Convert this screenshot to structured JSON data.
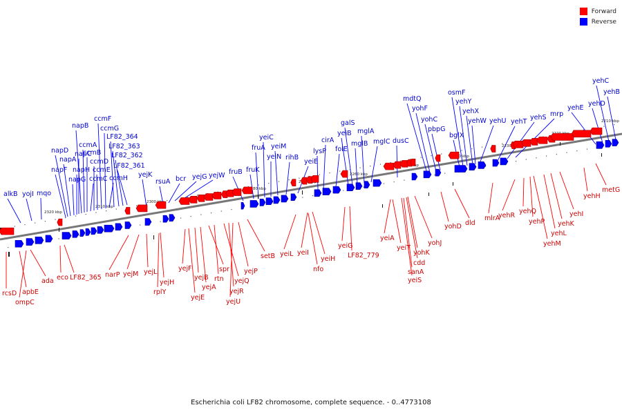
{
  "caption": "Escherichia coli LF82 chromosome, complete sequence. - 0..4773108",
  "legend": {
    "forward_label": "Forward",
    "reverse_label": "Reverse",
    "forward_color": "#ff0000",
    "reverse_color": "#0000ff"
  },
  "colors": {
    "forward_label": "#cc0000",
    "reverse_label": "#0000cc",
    "backbone": "#777777"
  },
  "ticks": [
    "2320 kbp",
    "2310 kbp",
    "2300 kbp",
    "2290 kbp",
    "2280 kbp",
    "2270 kbp",
    "2260 kbp",
    "2250 kbp",
    "2240 kbp",
    "2230 kbp",
    "2220 kbp",
    "2210 kbp"
  ],
  "reverse_labels": [
    "alkB",
    "yojI",
    "mqo",
    "napF",
    "napD",
    "napA",
    "napG",
    "napH",
    "napC",
    "napB",
    "ccmA",
    "ccmB",
    "ccmC",
    "ccmD",
    "ccmE",
    "ccmF",
    "ccmG",
    "ccmH",
    "LF82_364",
    "LF82_363",
    "LF82_362",
    "LF82_361",
    "yejK",
    "rsuA",
    "bcr",
    "yejG",
    "yejW",
    "fruB",
    "fruK",
    "fruA",
    "yeiC",
    "yeiN",
    "yeiM",
    "rihB",
    "yeiE",
    "lysP",
    "cirA",
    "folE",
    "yeiB",
    "galS",
    "mglB",
    "mglA",
    "mglC",
    "dusC",
    "mdtQ",
    "yohF",
    "yohC",
    "pbpG",
    "bglX",
    "osmF",
    "yehY",
    "yehX",
    "yehW",
    "yehU",
    "yehT",
    "yehS",
    "mrp",
    "yehE",
    "yehD",
    "yehC",
    "yehB"
  ],
  "forward_labels": [
    "rcsD",
    "apbE",
    "ompC",
    "ada",
    "eco",
    "LF82_365",
    "narP",
    "yejM",
    "yejL",
    "yejH",
    "rplY",
    "yejF",
    "yejE",
    "yejB",
    "yejA",
    "spr",
    "rtn",
    "yejQ",
    "yejR",
    "yejP",
    "yejU",
    "setB",
    "yeiL",
    "yeiI",
    "nfo",
    "yeiH",
    "yeiG",
    "LF82_779",
    "yeiA",
    "yeiT",
    "yohK",
    "cdd",
    "sanA",
    "yeiS",
    "yohJ",
    "yohD",
    "dld",
    "mlrA",
    "yehR",
    "yehQ",
    "yehP",
    "yehM",
    "yehL",
    "yehK",
    "yehI",
    "yehH",
    "metG"
  ]
}
